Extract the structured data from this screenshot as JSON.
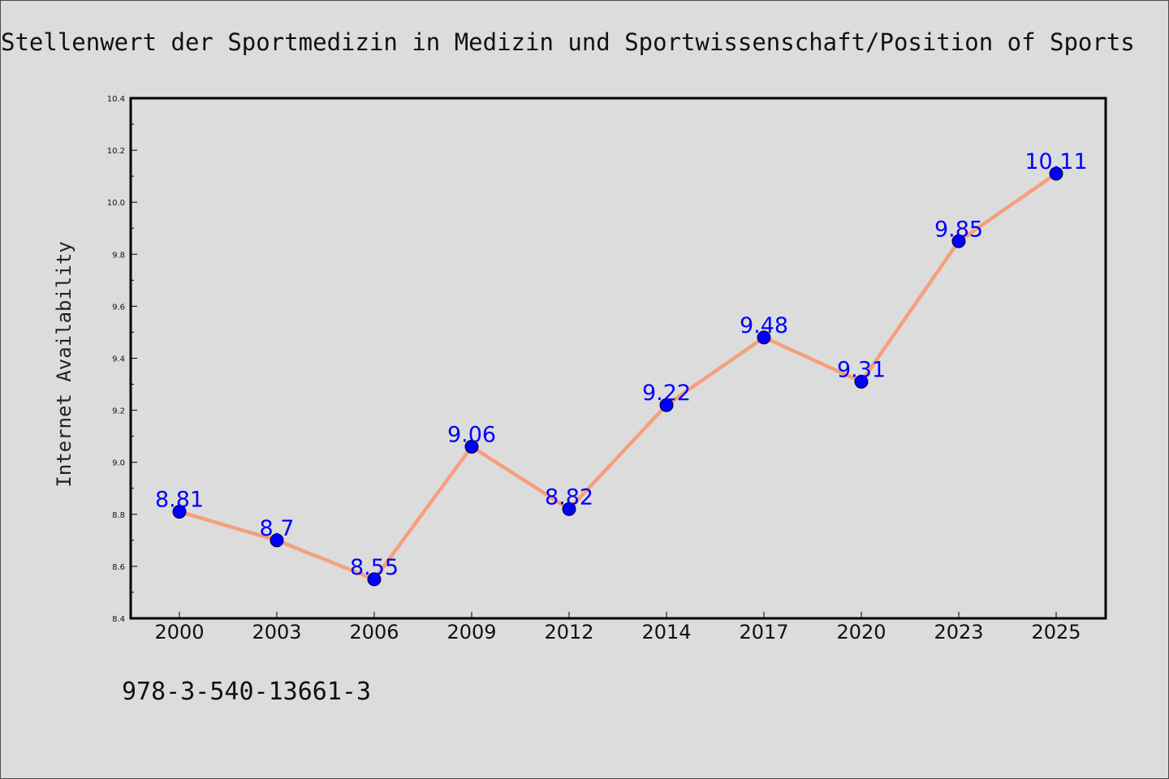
{
  "chart_data": {
    "type": "line",
    "title": "Stellenwert der Sportmedizin in Medizin und Sportwissenschaft/Position of Sports",
    "ylabel": "Internet Availability",
    "xlabel": "",
    "categories": [
      "2000",
      "2003",
      "2006",
      "2009",
      "2012",
      "2014",
      "2017",
      "2020",
      "2023",
      "2025"
    ],
    "series": [
      {
        "values": [
          8.81,
          8.7,
          8.55,
          9.06,
          8.82,
          9.22,
          9.48,
          9.31,
          9.85,
          10.11
        ],
        "labels": [
          "8.81",
          "8.7",
          "8.55",
          "9.06",
          "8.82",
          "9.22",
          "9.48",
          "9.31",
          "9.85",
          "10.11"
        ]
      }
    ],
    "ylim": [
      8.4,
      10.4
    ],
    "yticks": [
      "8.4",
      "8.6",
      "8.8",
      "9.0",
      "9.2",
      "9.4",
      "9.6",
      "9.8",
      "10.0",
      "10.2",
      "10.4"
    ],
    "grid": false,
    "line_color": "#f4a07c",
    "marker_color": "#0000ff",
    "label_color": "#0000ff"
  },
  "footer": {
    "isbn": "978-3-540-13661-3"
  }
}
